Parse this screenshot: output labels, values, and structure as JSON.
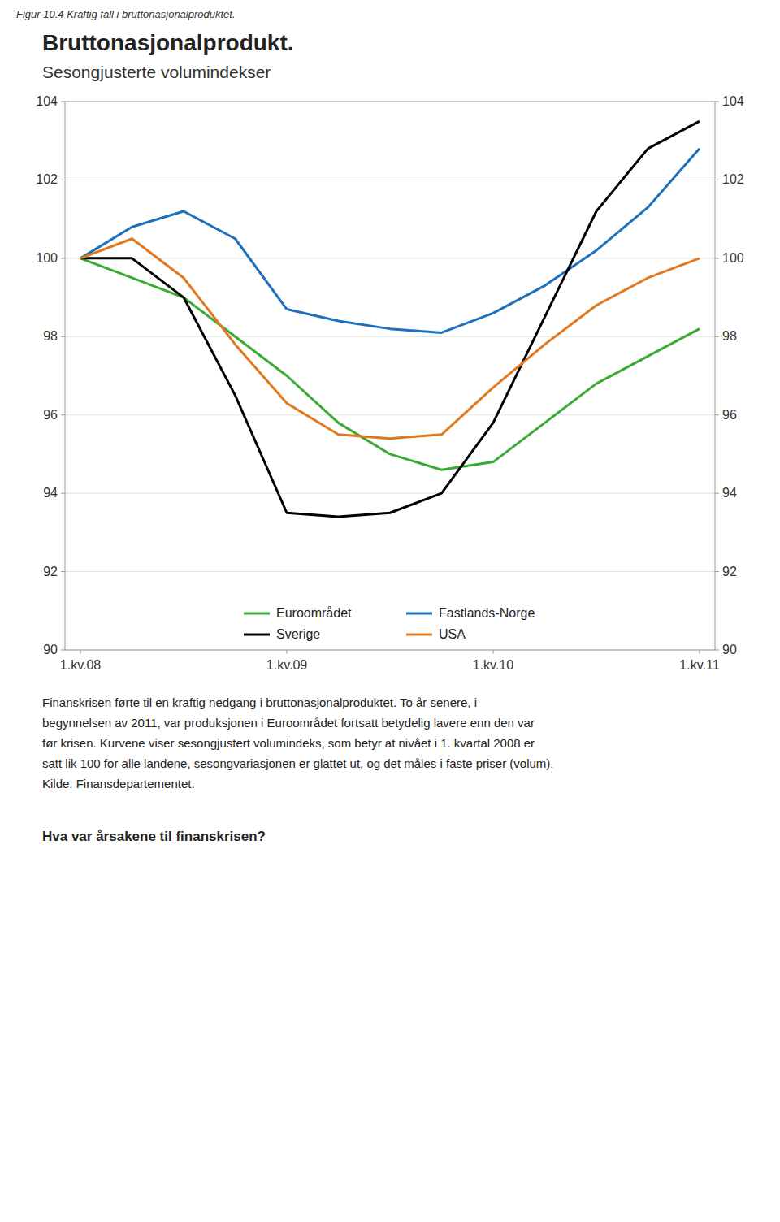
{
  "chart_data": {
    "type": "line",
    "caption": "Figur 10.4 Kraftig fall i bruttonasjonalproduktet.",
    "title": "Bruttonasjonalprodukt.",
    "subtitle": "Sesongjusterte volumindekser",
    "categories": [
      "1.kv.08",
      null,
      null,
      null,
      "1.kv.09",
      null,
      null,
      null,
      "1.kv.10",
      null,
      null,
      null,
      "1.kv.11"
    ],
    "series": [
      {
        "name": "Euroområdet",
        "color": "#3aaa35",
        "values": [
          100.0,
          99.5,
          99.0,
          98.0,
          97.0,
          95.8,
          95.0,
          94.6,
          94.8,
          95.8,
          96.8,
          97.5,
          98.2
        ]
      },
      {
        "name": "Fastlands-Norge",
        "color": "#1e6fbc",
        "values": [
          100.0,
          100.8,
          101.2,
          100.5,
          98.7,
          98.4,
          98.2,
          98.1,
          98.6,
          99.3,
          100.2,
          101.3,
          102.8
        ]
      },
      {
        "name": "Sverige",
        "color": "#000000",
        "values": [
          100.0,
          100.0,
          99.0,
          96.5,
          93.5,
          93.4,
          93.5,
          94.0,
          95.8,
          98.5,
          101.2,
          102.8,
          103.5
        ]
      },
      {
        "name": "USA",
        "color": "#e07820",
        "values": [
          100.0,
          100.5,
          99.5,
          97.8,
          96.3,
          95.5,
          95.4,
          95.5,
          96.7,
          97.8,
          98.8,
          99.5,
          100.0
        ]
      }
    ],
    "ylim": [
      90,
      104
    ],
    "yticks": [
      90,
      92,
      94,
      96,
      98,
      100,
      102,
      104
    ],
    "grid": true,
    "legend": "bottom",
    "annotations": [
      "Finanskrisen førte til en kraftig nedgang i bruttonasjonalproduktet. To år senere, i",
      "begynnelsen av 2011, var produksjonen i Euroområdet fortsatt betydelig lavere enn den var",
      "før krisen. Kurvene viser sesongjustert volumindeks, som betyr at nivået i 1. kvartal 2008 er",
      "satt lik 100 for alle landene, sesongvariasjonen er glattet ut, og det måles i faste priser (volum).",
      "Kilde: Finansdepartementet."
    ],
    "heading": "Hva var årsakene til finanskrisen?"
  }
}
